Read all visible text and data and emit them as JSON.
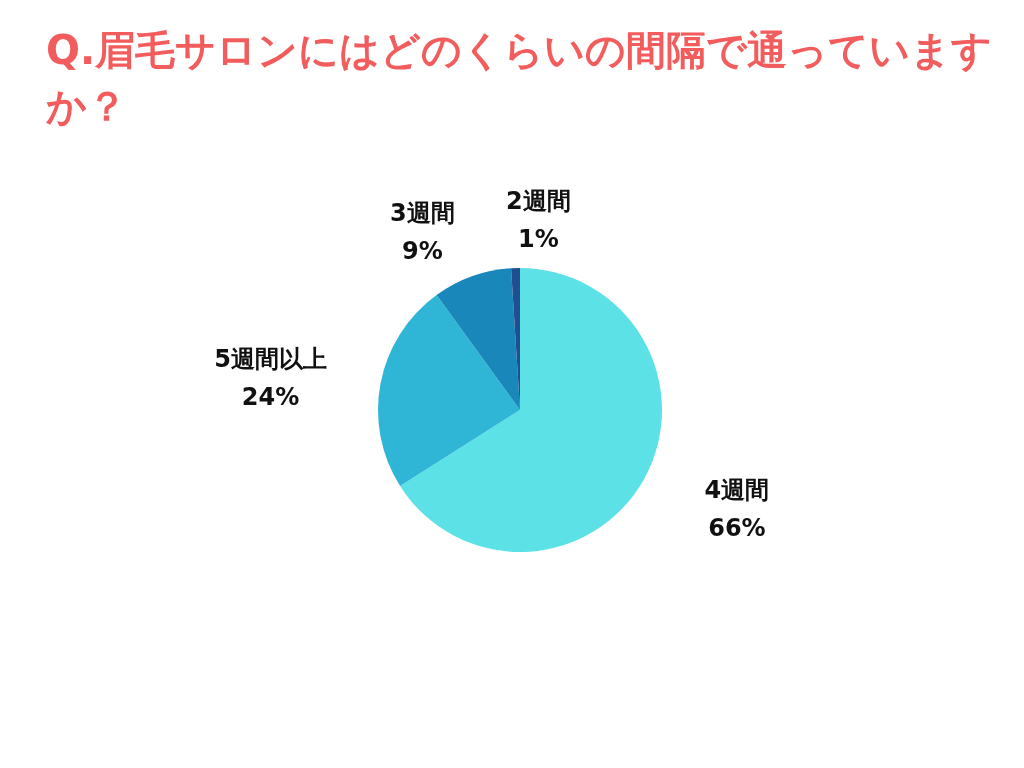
{
  "chart_data": {
    "type": "pie",
    "title": "Q.眉毛サロンにはどのくらいの間隔で通っていますか？",
    "categories": [
      "4週間",
      "5週間以上",
      "3週間",
      "2週間"
    ],
    "values": [
      66,
      24,
      9,
      1
    ],
    "value_labels": [
      "66%",
      "24%",
      "9%",
      "1%"
    ],
    "colors": [
      "#5ce1e6",
      "#2fb6d6",
      "#1a87ba",
      "#1f4f91"
    ]
  }
}
